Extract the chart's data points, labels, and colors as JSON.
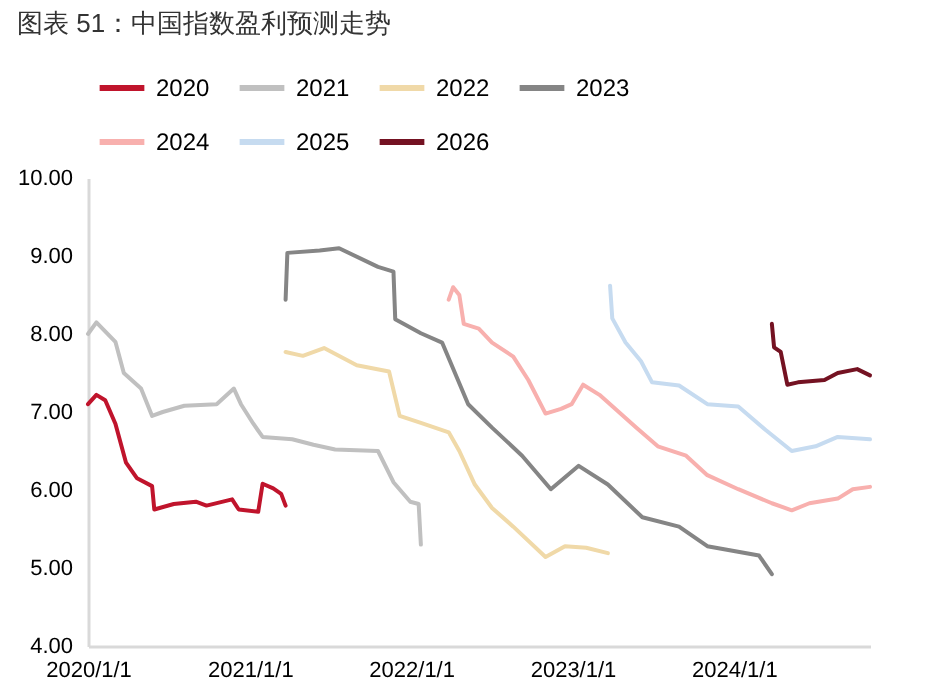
{
  "chart_data": {
    "type": "line",
    "title": "图表 51：中国指数盈利预测走势",
    "ylim": [
      4,
      10
    ],
    "yticks": [
      {
        "value": 4,
        "label": "4.00"
      },
      {
        "value": 5,
        "label": "5.00"
      },
      {
        "value": 6,
        "label": "6.00"
      },
      {
        "value": 7,
        "label": "7.00"
      },
      {
        "value": 8,
        "label": "8.00"
      },
      {
        "value": 9,
        "label": "9.00"
      },
      {
        "value": 10,
        "label": "10.00"
      }
    ],
    "xlim": [
      "2020-01-01",
      "2024-11-04"
    ],
    "xticks": [
      {
        "value": "2020-01-01",
        "label": "2020/1/1"
      },
      {
        "value": "2021-01-01",
        "label": "2021/1/1"
      },
      {
        "value": "2022-01-01",
        "label": "2022/1/1"
      },
      {
        "value": "2023-01-01",
        "label": "2023/1/1"
      },
      {
        "value": "2024-01-01",
        "label": "2024/1/1"
      }
    ],
    "grid": false,
    "legend": "top",
    "marker": "none",
    "line_style": "solid",
    "series": [
      {
        "name": "2020",
        "color": "#c0142c",
        "x": [
          "2020-01-01",
          "2020-01-20",
          "2020-02-09",
          "2020-03-03",
          "2020-03-27",
          "2020-04-21",
          "2020-05-25",
          "2020-05-30",
          "2020-07-13",
          "2020-09-01",
          "2020-09-25",
          "2020-11-22",
          "2020-12-07",
          "2021-01-20",
          "2021-01-30",
          "2021-02-23",
          "2021-03-13",
          "2021-03-23"
        ],
        "values": [
          7.1,
          7.22,
          7.15,
          6.85,
          6.35,
          6.15,
          6.05,
          5.75,
          5.82,
          5.85,
          5.8,
          5.88,
          5.75,
          5.72,
          6.08,
          6.02,
          5.95,
          5.8
        ]
      },
      {
        "name": "2021",
        "color": "#c0c0c0",
        "x": [
          "2020-01-01",
          "2020-01-20",
          "2020-03-03",
          "2020-03-22",
          "2020-04-30",
          "2020-05-25",
          "2020-06-18",
          "2020-08-06",
          "2020-10-18",
          "2020-11-26",
          "2020-12-12",
          "2021-01-09",
          "2021-01-30",
          "2021-04-07",
          "2021-05-25",
          "2021-07-13",
          "2021-10-18",
          "2021-11-22",
          "2021-12-30",
          "2022-01-18",
          "2022-01-23"
        ],
        "values": [
          8.0,
          8.15,
          7.9,
          7.5,
          7.3,
          6.95,
          7.0,
          7.08,
          7.1,
          7.3,
          7.1,
          6.85,
          6.68,
          6.65,
          6.58,
          6.52,
          6.5,
          6.1,
          5.85,
          5.82,
          5.3
        ]
      },
      {
        "name": "2022",
        "color": "#f0d9a8",
        "x": [
          "2021-03-23",
          "2021-05-01",
          "2021-06-18",
          "2021-08-31",
          "2021-11-12",
          "2021-12-06",
          "2022-01-23",
          "2022-03-27",
          "2022-04-20",
          "2022-05-25",
          "2022-07-03",
          "2022-08-20",
          "2022-11-01",
          "2022-12-15",
          "2023-02-01",
          "2023-03-22"
        ],
        "values": [
          7.77,
          7.72,
          7.82,
          7.6,
          7.52,
          6.95,
          6.86,
          6.74,
          6.5,
          6.07,
          5.77,
          5.53,
          5.14,
          5.28,
          5.26,
          5.19
        ]
      },
      {
        "name": "2023",
        "color": "#858585",
        "x": [
          "2021-03-23",
          "2021-03-27",
          "2021-06-08",
          "2021-07-22",
          "2021-10-18",
          "2021-11-22",
          "2021-11-26",
          "2022-01-23",
          "2022-03-12",
          "2022-05-10",
          "2022-07-03",
          "2022-09-09",
          "2022-11-13",
          "2023-01-15",
          "2023-03-22",
          "2023-06-08",
          "2023-08-30",
          "2023-11-02",
          "2024-02-27",
          "2024-03-27"
        ],
        "values": [
          8.44,
          9.04,
          9.07,
          9.1,
          8.86,
          8.8,
          8.19,
          8.01,
          7.89,
          7.1,
          6.8,
          6.44,
          6.01,
          6.31,
          6.07,
          5.65,
          5.53,
          5.28,
          5.16,
          4.92
        ]
      },
      {
        "name": "2024",
        "color": "#f8b0ae",
        "x": [
          "2022-03-27",
          "2022-04-06",
          "2022-04-20",
          "2022-04-30",
          "2022-06-03",
          "2022-07-03",
          "2022-08-20",
          "2022-09-23",
          "2022-11-01",
          "2022-12-06",
          "2022-12-30",
          "2023-01-25",
          "2023-03-03",
          "2023-05-25",
          "2023-07-13",
          "2023-09-15",
          "2023-11-02",
          "2024-01-11",
          "2024-03-27",
          "2024-05-11",
          "2024-06-20",
          "2024-08-23",
          "2024-09-26",
          "2024-11-04"
        ],
        "values": [
          8.44,
          8.6,
          8.5,
          8.13,
          8.07,
          7.89,
          7.71,
          7.41,
          6.98,
          7.04,
          7.1,
          7.35,
          7.22,
          6.8,
          6.56,
          6.44,
          6.19,
          6.01,
          5.83,
          5.74,
          5.83,
          5.89,
          6.01,
          6.04
        ]
      },
      {
        "name": "2025",
        "color": "#c6dbf0",
        "x": [
          "2023-03-27",
          "2023-04-01",
          "2023-05-01",
          "2023-06-05",
          "2023-06-30",
          "2023-08-30",
          "2023-11-02",
          "2024-01-11",
          "2024-03-13",
          "2024-05-11",
          "2024-07-04",
          "2024-08-23",
          "2024-11-04"
        ],
        "values": [
          8.62,
          8.2,
          7.89,
          7.65,
          7.38,
          7.34,
          7.1,
          7.07,
          6.77,
          6.5,
          6.56,
          6.68,
          6.65
        ]
      },
      {
        "name": "2026",
        "color": "#741222",
        "x": [
          "2024-03-27",
          "2024-04-01",
          "2024-04-16",
          "2024-05-01",
          "2024-05-25",
          "2024-07-24",
          "2024-08-23",
          "2024-10-06",
          "2024-11-04"
        ],
        "values": [
          8.13,
          7.83,
          7.77,
          7.35,
          7.38,
          7.41,
          7.5,
          7.55,
          7.47
        ]
      }
    ]
  }
}
